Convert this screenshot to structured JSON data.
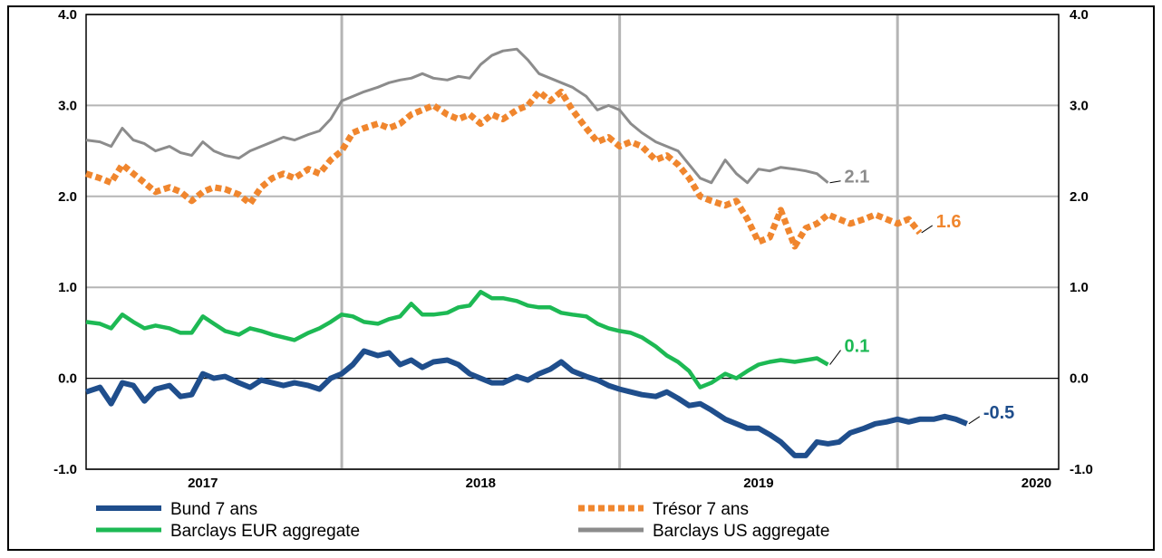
{
  "chart_data": {
    "type": "line",
    "title": "",
    "xlabel": "",
    "ylabel": "",
    "ylim": [
      -1.0,
      4.0
    ],
    "yticks": [
      -1.0,
      0.0,
      1.0,
      2.0,
      3.0,
      4.0
    ],
    "ytick_labels": [
      "-1.0",
      "0.0",
      "1.0",
      "2.0",
      "3.0",
      "4.0"
    ],
    "xlim": [
      2016.58,
      2020.08
    ],
    "year_labels": [
      {
        "label": "2017",
        "x": 2017.0
      },
      {
        "label": "2018",
        "x": 2018.0
      },
      {
        "label": "2019",
        "x": 2019.0
      },
      {
        "label": "2020",
        "x": 2020.0
      }
    ],
    "gridlines_x": [
      2017.5,
      2018.5,
      2019.5
    ],
    "grid": true,
    "legend_position": "bottom",
    "series": [
      {
        "name": "Bund 7 ans",
        "color": "#1f4e8c",
        "style": "solid-thick",
        "end_label": "-0.5",
        "points": [
          [
            2016.58,
            -0.15
          ],
          [
            2016.63,
            -0.1
          ],
          [
            2016.67,
            -0.28
          ],
          [
            2016.71,
            -0.05
          ],
          [
            2016.75,
            -0.08
          ],
          [
            2016.79,
            -0.25
          ],
          [
            2016.83,
            -0.12
          ],
          [
            2016.88,
            -0.08
          ],
          [
            2016.92,
            -0.2
          ],
          [
            2016.96,
            -0.18
          ],
          [
            2017.0,
            0.05
          ],
          [
            2017.04,
            0.0
          ],
          [
            2017.08,
            0.02
          ],
          [
            2017.13,
            -0.05
          ],
          [
            2017.17,
            -0.1
          ],
          [
            2017.21,
            -0.02
          ],
          [
            2017.25,
            -0.05
          ],
          [
            2017.29,
            -0.08
          ],
          [
            2017.33,
            -0.05
          ],
          [
            2017.38,
            -0.08
          ],
          [
            2017.42,
            -0.12
          ],
          [
            2017.46,
            0.0
          ],
          [
            2017.5,
            0.05
          ],
          [
            2017.54,
            0.15
          ],
          [
            2017.58,
            0.3
          ],
          [
            2017.63,
            0.25
          ],
          [
            2017.67,
            0.28
          ],
          [
            2017.71,
            0.15
          ],
          [
            2017.75,
            0.2
          ],
          [
            2017.79,
            0.12
          ],
          [
            2017.83,
            0.18
          ],
          [
            2017.88,
            0.2
          ],
          [
            2017.92,
            0.15
          ],
          [
            2017.96,
            0.05
          ],
          [
            2018.0,
            0.0
          ],
          [
            2018.04,
            -0.05
          ],
          [
            2018.08,
            -0.05
          ],
          [
            2018.13,
            0.02
          ],
          [
            2018.17,
            -0.02
          ],
          [
            2018.21,
            0.05
          ],
          [
            2018.25,
            0.1
          ],
          [
            2018.29,
            0.18
          ],
          [
            2018.33,
            0.08
          ],
          [
            2018.38,
            0.02
          ],
          [
            2018.42,
            -0.02
          ],
          [
            2018.46,
            -0.08
          ],
          [
            2018.5,
            -0.12
          ],
          [
            2018.54,
            -0.15
          ],
          [
            2018.58,
            -0.18
          ],
          [
            2018.63,
            -0.2
          ],
          [
            2018.67,
            -0.15
          ],
          [
            2018.71,
            -0.22
          ],
          [
            2018.75,
            -0.3
          ],
          [
            2018.79,
            -0.28
          ],
          [
            2018.83,
            -0.35
          ],
          [
            2018.88,
            -0.45
          ],
          [
            2018.92,
            -0.5
          ],
          [
            2018.96,
            -0.55
          ],
          [
            2019.0,
            -0.55
          ],
          [
            2019.04,
            -0.62
          ],
          [
            2019.08,
            -0.7
          ],
          [
            2019.13,
            -0.85
          ],
          [
            2019.17,
            -0.85
          ],
          [
            2019.21,
            -0.7
          ],
          [
            2019.25,
            -0.72
          ],
          [
            2019.29,
            -0.7
          ],
          [
            2019.33,
            -0.6
          ],
          [
            2019.38,
            -0.55
          ],
          [
            2019.42,
            -0.5
          ],
          [
            2019.46,
            -0.48
          ],
          [
            2019.5,
            -0.45
          ],
          [
            2019.54,
            -0.48
          ],
          [
            2019.58,
            -0.45
          ],
          [
            2019.63,
            -0.45
          ],
          [
            2019.67,
            -0.42
          ],
          [
            2019.71,
            -0.45
          ],
          [
            2019.75,
            -0.5
          ]
        ]
      },
      {
        "name": "Trésor 7 ans",
        "color": "#f0862e",
        "style": "dotted-thick",
        "end_label": "1.6",
        "points": [
          [
            2016.58,
            2.25
          ],
          [
            2016.63,
            2.2
          ],
          [
            2016.67,
            2.15
          ],
          [
            2016.71,
            2.35
          ],
          [
            2016.75,
            2.25
          ],
          [
            2016.79,
            2.15
          ],
          [
            2016.83,
            2.05
          ],
          [
            2016.88,
            2.1
          ],
          [
            2016.92,
            2.05
          ],
          [
            2016.96,
            1.95
          ],
          [
            2017.0,
            2.05
          ],
          [
            2017.04,
            2.1
          ],
          [
            2017.08,
            2.08
          ],
          [
            2017.13,
            2.02
          ],
          [
            2017.17,
            1.92
          ],
          [
            2017.21,
            2.1
          ],
          [
            2017.25,
            2.2
          ],
          [
            2017.29,
            2.25
          ],
          [
            2017.33,
            2.2
          ],
          [
            2017.38,
            2.3
          ],
          [
            2017.42,
            2.25
          ],
          [
            2017.46,
            2.4
          ],
          [
            2017.5,
            2.5
          ],
          [
            2017.54,
            2.7
          ],
          [
            2017.58,
            2.75
          ],
          [
            2017.63,
            2.8
          ],
          [
            2017.67,
            2.75
          ],
          [
            2017.71,
            2.8
          ],
          [
            2017.75,
            2.9
          ],
          [
            2017.79,
            2.95
          ],
          [
            2017.83,
            3.0
          ],
          [
            2017.88,
            2.9
          ],
          [
            2017.92,
            2.85
          ],
          [
            2017.96,
            2.9
          ],
          [
            2018.0,
            2.8
          ],
          [
            2018.04,
            2.9
          ],
          [
            2018.08,
            2.85
          ],
          [
            2018.13,
            2.95
          ],
          [
            2018.17,
            3.0
          ],
          [
            2018.21,
            3.15
          ],
          [
            2018.25,
            3.05
          ],
          [
            2018.29,
            3.15
          ],
          [
            2018.33,
            2.95
          ],
          [
            2018.38,
            2.75
          ],
          [
            2018.42,
            2.6
          ],
          [
            2018.46,
            2.65
          ],
          [
            2018.5,
            2.55
          ],
          [
            2018.54,
            2.6
          ],
          [
            2018.58,
            2.55
          ],
          [
            2018.63,
            2.4
          ],
          [
            2018.67,
            2.45
          ],
          [
            2018.71,
            2.35
          ],
          [
            2018.75,
            2.2
          ],
          [
            2018.79,
            2.0
          ],
          [
            2018.83,
            1.95
          ],
          [
            2018.88,
            1.9
          ],
          [
            2018.92,
            1.95
          ],
          [
            2018.96,
            1.75
          ],
          [
            2019.0,
            1.5
          ],
          [
            2019.04,
            1.55
          ],
          [
            2019.08,
            1.85
          ],
          [
            2019.13,
            1.45
          ],
          [
            2019.17,
            1.65
          ],
          [
            2019.21,
            1.7
          ],
          [
            2019.25,
            1.8
          ],
          [
            2019.29,
            1.75
          ],
          [
            2019.33,
            1.7
          ],
          [
            2019.38,
            1.75
          ],
          [
            2019.42,
            1.8
          ],
          [
            2019.46,
            1.75
          ],
          [
            2019.5,
            1.7
          ],
          [
            2019.54,
            1.75
          ],
          [
            2019.58,
            1.6
          ]
        ]
      },
      {
        "name": "Barclays EUR aggregate",
        "color": "#1db954",
        "style": "solid",
        "end_label": "0.1",
        "points": [
          [
            2016.58,
            0.62
          ],
          [
            2016.63,
            0.6
          ],
          [
            2016.67,
            0.55
          ],
          [
            2016.71,
            0.7
          ],
          [
            2016.75,
            0.62
          ],
          [
            2016.79,
            0.55
          ],
          [
            2016.83,
            0.58
          ],
          [
            2016.88,
            0.55
          ],
          [
            2016.92,
            0.5
          ],
          [
            2016.96,
            0.5
          ],
          [
            2017.0,
            0.68
          ],
          [
            2017.04,
            0.6
          ],
          [
            2017.08,
            0.52
          ],
          [
            2017.13,
            0.48
          ],
          [
            2017.17,
            0.55
          ],
          [
            2017.21,
            0.52
          ],
          [
            2017.25,
            0.48
          ],
          [
            2017.29,
            0.45
          ],
          [
            2017.33,
            0.42
          ],
          [
            2017.38,
            0.5
          ],
          [
            2017.42,
            0.55
          ],
          [
            2017.46,
            0.62
          ],
          [
            2017.5,
            0.7
          ],
          [
            2017.54,
            0.68
          ],
          [
            2017.58,
            0.62
          ],
          [
            2017.63,
            0.6
          ],
          [
            2017.67,
            0.65
          ],
          [
            2017.71,
            0.68
          ],
          [
            2017.75,
            0.82
          ],
          [
            2017.79,
            0.7
          ],
          [
            2017.83,
            0.7
          ],
          [
            2017.88,
            0.72
          ],
          [
            2017.92,
            0.78
          ],
          [
            2017.96,
            0.8
          ],
          [
            2018.0,
            0.95
          ],
          [
            2018.04,
            0.88
          ],
          [
            2018.08,
            0.88
          ],
          [
            2018.13,
            0.85
          ],
          [
            2018.17,
            0.8
          ],
          [
            2018.21,
            0.78
          ],
          [
            2018.25,
            0.78
          ],
          [
            2018.29,
            0.72
          ],
          [
            2018.33,
            0.7
          ],
          [
            2018.38,
            0.68
          ],
          [
            2018.42,
            0.6
          ],
          [
            2018.46,
            0.55
          ],
          [
            2018.5,
            0.52
          ],
          [
            2018.54,
            0.5
          ],
          [
            2018.58,
            0.45
          ],
          [
            2018.63,
            0.35
          ],
          [
            2018.67,
            0.25
          ],
          [
            2018.71,
            0.18
          ],
          [
            2018.75,
            0.08
          ],
          [
            2018.79,
            -0.1
          ],
          [
            2018.83,
            -0.05
          ],
          [
            2018.88,
            0.05
          ],
          [
            2018.92,
            0.0
          ],
          [
            2018.96,
            0.08
          ],
          [
            2019.0,
            0.15
          ],
          [
            2019.04,
            0.18
          ],
          [
            2019.08,
            0.2
          ],
          [
            2019.13,
            0.18
          ],
          [
            2019.17,
            0.2
          ],
          [
            2019.21,
            0.22
          ],
          [
            2019.25,
            0.15
          ]
        ]
      },
      {
        "name": "Barclays US aggregate",
        "color": "#8c8c8c",
        "style": "solid-thin",
        "end_label": "2.1",
        "points": [
          [
            2016.58,
            2.62
          ],
          [
            2016.63,
            2.6
          ],
          [
            2016.67,
            2.55
          ],
          [
            2016.71,
            2.75
          ],
          [
            2016.75,
            2.62
          ],
          [
            2016.79,
            2.58
          ],
          [
            2016.83,
            2.5
          ],
          [
            2016.88,
            2.55
          ],
          [
            2016.92,
            2.48
          ],
          [
            2016.96,
            2.45
          ],
          [
            2017.0,
            2.6
          ],
          [
            2017.04,
            2.5
          ],
          [
            2017.08,
            2.45
          ],
          [
            2017.13,
            2.42
          ],
          [
            2017.17,
            2.5
          ],
          [
            2017.21,
            2.55
          ],
          [
            2017.25,
            2.6
          ],
          [
            2017.29,
            2.65
          ],
          [
            2017.33,
            2.62
          ],
          [
            2017.38,
            2.68
          ],
          [
            2017.42,
            2.72
          ],
          [
            2017.46,
            2.85
          ],
          [
            2017.5,
            3.05
          ],
          [
            2017.54,
            3.1
          ],
          [
            2017.58,
            3.15
          ],
          [
            2017.63,
            3.2
          ],
          [
            2017.67,
            3.25
          ],
          [
            2017.71,
            3.28
          ],
          [
            2017.75,
            3.3
          ],
          [
            2017.79,
            3.35
          ],
          [
            2017.83,
            3.3
          ],
          [
            2017.88,
            3.28
          ],
          [
            2017.92,
            3.32
          ],
          [
            2017.96,
            3.3
          ],
          [
            2018.0,
            3.45
          ],
          [
            2018.04,
            3.55
          ],
          [
            2018.08,
            3.6
          ],
          [
            2018.13,
            3.62
          ],
          [
            2018.17,
            3.5
          ],
          [
            2018.21,
            3.35
          ],
          [
            2018.25,
            3.3
          ],
          [
            2018.29,
            3.25
          ],
          [
            2018.33,
            3.2
          ],
          [
            2018.38,
            3.1
          ],
          [
            2018.42,
            2.95
          ],
          [
            2018.46,
            3.0
          ],
          [
            2018.5,
            2.95
          ],
          [
            2018.54,
            2.8
          ],
          [
            2018.58,
            2.7
          ],
          [
            2018.63,
            2.6
          ],
          [
            2018.67,
            2.55
          ],
          [
            2018.71,
            2.5
          ],
          [
            2018.75,
            2.35
          ],
          [
            2018.79,
            2.2
          ],
          [
            2018.83,
            2.15
          ],
          [
            2018.88,
            2.4
          ],
          [
            2018.92,
            2.25
          ],
          [
            2018.96,
            2.15
          ],
          [
            2019.0,
            2.3
          ],
          [
            2019.04,
            2.28
          ],
          [
            2019.08,
            2.32
          ],
          [
            2019.13,
            2.3
          ],
          [
            2019.17,
            2.28
          ],
          [
            2019.21,
            2.25
          ],
          [
            2019.25,
            2.15
          ]
        ]
      }
    ]
  }
}
